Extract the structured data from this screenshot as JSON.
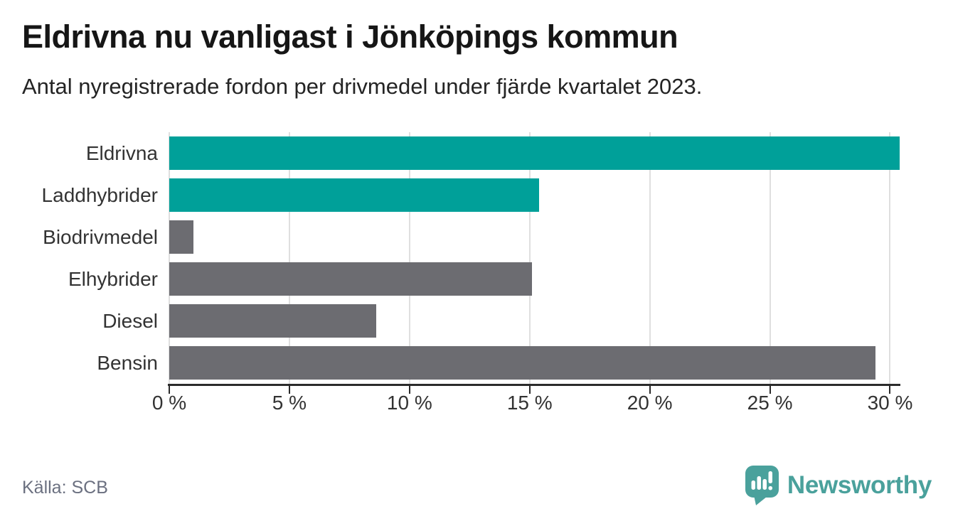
{
  "header": {
    "title": "Eldrivna nu vanligast i Jönköpings kommun",
    "subtitle": "Antal nyregistrerade fordon per drivmedel under fjärde kvartalet 2023."
  },
  "chart_data": {
    "type": "bar",
    "orientation": "horizontal",
    "title": "Eldrivna nu vanligast i Jönköpings kommun",
    "subtitle": "Antal nyregistrerade fordon per drivmedel under fjärde kvartalet 2023.",
    "categories": [
      "Eldrivna",
      "Laddhybrider",
      "Biodrivmedel",
      "Elhybrider",
      "Diesel",
      "Bensin"
    ],
    "values": [
      30.4,
      15.4,
      1.0,
      15.1,
      8.6,
      29.4
    ],
    "unit": "%",
    "bar_colors": [
      "#00A099",
      "#00A099",
      "#6C6C71",
      "#6C6C71",
      "#6C6C71",
      "#6C6C71"
    ],
    "xlim": [
      0,
      30.4
    ],
    "x_ticks": [
      0,
      5,
      10,
      15,
      20,
      25,
      30
    ],
    "x_tick_labels": [
      "0 %",
      "5 %",
      "10 %",
      "15 %",
      "20 %",
      "25 %",
      "30 %"
    ],
    "grid": "vertical",
    "legend": "none"
  },
  "colors": {
    "highlight": "#00A099",
    "neutral": "#6C6C71",
    "gridline": "#DFDFDF",
    "axis": "#2B2B2B",
    "brand_teal": "#4AA19C"
  },
  "footer": {
    "source": "Källa: SCB",
    "brand": "Newsworthy"
  },
  "icons": {
    "logo": "newsworthy-speech-bubble-bar-chart-icon"
  }
}
